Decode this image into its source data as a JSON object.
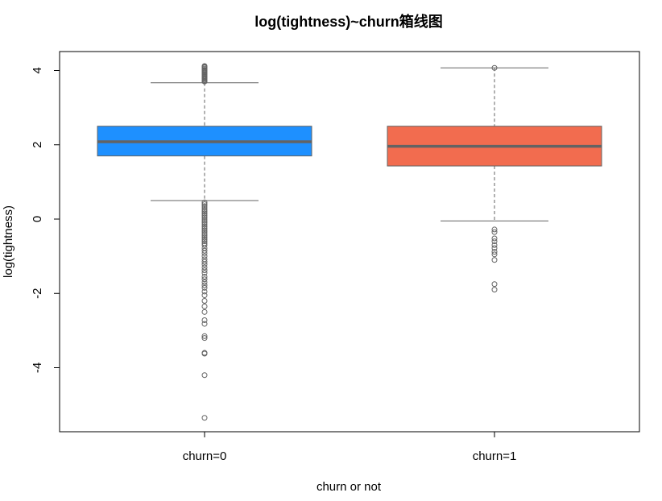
{
  "chart_data": {
    "type": "box",
    "title": "log(tightness)~churn箱线图",
    "xlabel": "churn or not",
    "ylabel": "log(tightness)",
    "ylim": [
      -5.6,
      4.4
    ],
    "y_ticks": [
      4,
      2,
      0,
      -2,
      -4
    ],
    "y_tick_labels": [
      "4",
      "2",
      "0",
      "-2",
      "-4"
    ],
    "categories": [
      "churn=0",
      "churn=1"
    ],
    "boxes": [
      {
        "category": "churn=0",
        "color": "#1e90ff",
        "whisker_low": 0.5,
        "q1": 1.7,
        "median": 2.08,
        "q3": 2.5,
        "whisker_high": 3.67,
        "outliers": [
          3.7,
          3.72,
          3.75,
          3.78,
          3.8,
          3.83,
          3.85,
          3.88,
          3.9,
          3.93,
          3.95,
          3.98,
          4.0,
          4.02,
          4.05,
          4.08,
          4.1,
          4.12,
          0.45,
          0.4,
          0.35,
          0.3,
          0.25,
          0.2,
          0.15,
          0.1,
          0.05,
          0.0,
          -0.05,
          -0.1,
          -0.15,
          -0.2,
          -0.25,
          -0.3,
          -0.35,
          -0.4,
          -0.45,
          -0.5,
          -0.55,
          -0.6,
          -0.65,
          -0.7,
          -0.78,
          -0.85,
          -0.92,
          -1.0,
          -1.08,
          -1.15,
          -1.22,
          -1.3,
          -1.38,
          -1.45,
          -1.55,
          -1.62,
          -1.7,
          -1.78,
          -1.85,
          -1.95,
          -2.05,
          -2.2,
          -2.35,
          -2.5,
          -2.72,
          -2.82,
          -3.15,
          -3.2,
          -3.6,
          -3.62,
          -4.2,
          -5.35
        ]
      },
      {
        "category": "churn=1",
        "color": "#f26c4f",
        "whisker_low": -0.05,
        "q1": 1.43,
        "median": 1.96,
        "q3": 2.5,
        "whisker_high": 4.07,
        "outliers": [
          4.07,
          -0.28,
          -0.35,
          -0.52,
          -0.6,
          -0.7,
          -0.78,
          -0.88,
          -0.95,
          -1.1,
          -1.75,
          -1.9
        ]
      }
    ]
  }
}
